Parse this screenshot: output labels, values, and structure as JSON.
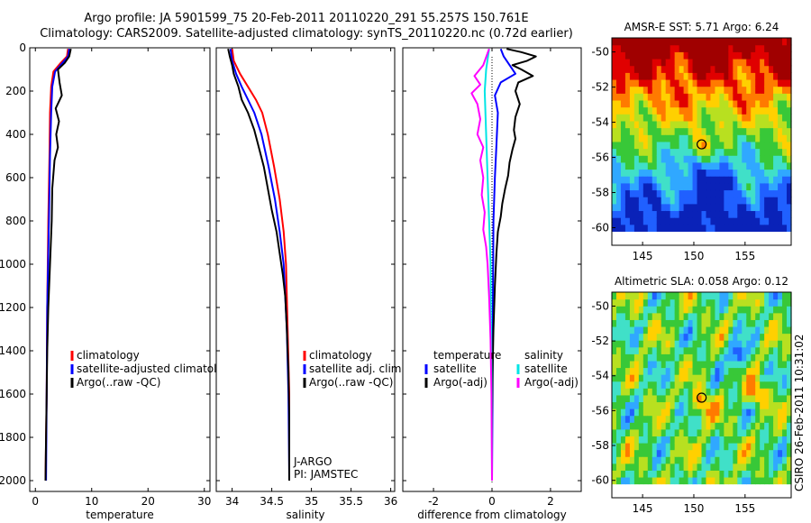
{
  "header": {
    "line1": "Argo profile: JA 5901599_75 20-Feb-2011 20110220_291 55.257S 150.761E",
    "line2": "Climatology: CARS2009. Satellite-adjusted climatology: synTS_20110220.nc (0.72d earlier)"
  },
  "watermark": "CSIRO 26-Feb-2011 10:31:02",
  "colors": {
    "climatology": "#ff0000",
    "satellite": "#0000ff",
    "argo": "#000000",
    "temp_diff": "#00e5e5",
    "sal_diff": "#ff00ff"
  },
  "chart_data": [
    {
      "type": "line",
      "id": "temperature",
      "xlabel": "temperature",
      "ylabel": "",
      "xlim": [
        -1,
        31
      ],
      "ylim": [
        2050,
        0
      ],
      "x_ticks": [
        0,
        10,
        20,
        30
      ],
      "x_tick_labels": [
        "0",
        "10",
        "20",
        "30"
      ],
      "y_ticks": [
        0,
        200,
        400,
        600,
        800,
        1000,
        1200,
        1400,
        1600,
        1800,
        2000
      ],
      "y_tick_labels": [
        "0",
        "200",
        "400",
        "600",
        "800",
        "1000",
        "1200",
        "1400",
        "1600",
        "1800",
        "2000"
      ],
      "legend": [
        "climatology",
        "satellite-adjusted climatology",
        "Argo(..raw -QC)"
      ],
      "legend_text_color": [
        "#000000",
        "#000000",
        "#000000"
      ],
      "series": [
        {
          "name": "climatology",
          "color": "#ff0000",
          "points": [
            [
              5.8,
              5
            ],
            [
              5.6,
              40
            ],
            [
              4.5,
              70
            ],
            [
              3.2,
              110
            ],
            [
              2.8,
              180
            ],
            [
              2.6,
              300
            ],
            [
              2.5,
              500
            ],
            [
              2.3,
              800
            ],
            [
              2.1,
              1200
            ],
            [
              2.0,
              1600
            ],
            [
              1.8,
              2000
            ]
          ]
        },
        {
          "name": "satellite-adjusted climatology",
          "color": "#0000ff",
          "points": [
            [
              6.0,
              5
            ],
            [
              5.8,
              40
            ],
            [
              4.8,
              70
            ],
            [
              3.5,
              110
            ],
            [
              3.0,
              180
            ],
            [
              2.8,
              300
            ],
            [
              2.6,
              500
            ],
            [
              2.4,
              800
            ],
            [
              2.1,
              1200
            ],
            [
              2.0,
              1600
            ],
            [
              1.9,
              2000
            ]
          ]
        },
        {
          "name": "Argo(..raw -QC)",
          "color": "#000000",
          "points": [
            [
              6.3,
              5
            ],
            [
              6.0,
              40
            ],
            [
              5.2,
              70
            ],
            [
              4.0,
              100
            ],
            [
              4.3,
              160
            ],
            [
              4.7,
              220
            ],
            [
              3.6,
              280
            ],
            [
              4.2,
              340
            ],
            [
              3.7,
              400
            ],
            [
              4.0,
              460
            ],
            [
              3.4,
              520
            ],
            [
              3.0,
              650
            ],
            [
              2.9,
              800
            ],
            [
              2.6,
              1000
            ],
            [
              2.3,
              1200
            ],
            [
              2.1,
              1400
            ],
            [
              2.0,
              1600
            ],
            [
              1.9,
              1800
            ],
            [
              1.8,
              2000
            ]
          ]
        }
      ]
    },
    {
      "type": "line",
      "id": "salinity",
      "xlabel": "salinity",
      "ylabel": "",
      "xlim": [
        33.8,
        36.05
      ],
      "ylim": [
        2050,
        0
      ],
      "x_ticks": [
        34,
        34.5,
        35,
        35.5,
        36
      ],
      "x_tick_labels": [
        "34",
        "34.5",
        "35",
        "35.5",
        "36"
      ],
      "legend": [
        "climatology",
        "satellite adj. clim.",
        "Argo(..raw -QC)"
      ],
      "annotations": [
        "J-ARGO",
        "PI: JAMSTEC"
      ],
      "series": [
        {
          "name": "climatology",
          "color": "#ff0000",
          "points": [
            [
              34.0,
              5
            ],
            [
              34.02,
              60
            ],
            [
              34.1,
              120
            ],
            [
              34.2,
              180
            ],
            [
              34.3,
              240
            ],
            [
              34.38,
              300
            ],
            [
              34.45,
              400
            ],
            [
              34.53,
              550
            ],
            [
              34.6,
              700
            ],
            [
              34.65,
              850
            ],
            [
              34.68,
              1000
            ],
            [
              34.7,
              1300
            ],
            [
              34.72,
              1600
            ],
            [
              34.72,
              2000
            ]
          ]
        },
        {
          "name": "satellite adj. clim.",
          "color": "#0000ff",
          "points": [
            [
              33.98,
              5
            ],
            [
              34.0,
              60
            ],
            [
              34.05,
              120
            ],
            [
              34.12,
              180
            ],
            [
              34.2,
              240
            ],
            [
              34.28,
              300
            ],
            [
              34.37,
              400
            ],
            [
              34.46,
              550
            ],
            [
              34.54,
              700
            ],
            [
              34.6,
              850
            ],
            [
              34.65,
              1000
            ],
            [
              34.69,
              1300
            ],
            [
              34.71,
              1600
            ],
            [
              34.72,
              2000
            ]
          ]
        },
        {
          "name": "Argo(..raw -QC)",
          "color": "#000000",
          "points": [
            [
              33.95,
              5
            ],
            [
              33.97,
              40
            ],
            [
              34.0,
              80
            ],
            [
              34.02,
              120
            ],
            [
              34.08,
              180
            ],
            [
              34.12,
              240
            ],
            [
              34.2,
              300
            ],
            [
              34.28,
              380
            ],
            [
              34.33,
              450
            ],
            [
              34.4,
              550
            ],
            [
              34.45,
              650
            ],
            [
              34.5,
              750
            ],
            [
              34.56,
              850
            ],
            [
              34.6,
              950
            ],
            [
              34.64,
              1050
            ],
            [
              34.67,
              1150
            ],
            [
              34.69,
              1300
            ],
            [
              34.71,
              1500
            ],
            [
              34.72,
              1700
            ],
            [
              34.72,
              2000
            ]
          ]
        }
      ]
    },
    {
      "type": "line",
      "id": "difference",
      "xlabel": "difference from climatology",
      "ylabel": "",
      "xlim": [
        -3.05,
        3.05
      ],
      "ylim": [
        2050,
        0
      ],
      "x_ticks": [
        -2,
        0,
        2
      ],
      "x_tick_labels": [
        "-2",
        "0",
        "2"
      ],
      "legend_left_title": "temperature",
      "legend_left": [
        "satellite",
        "Argo(-adj)"
      ],
      "legend_right_title": "salinity",
      "legend_right": [
        "satellite",
        "Argo(-adj)"
      ],
      "series": [
        {
          "name": "temperature satellite",
          "color": "#0000ff",
          "points": [
            [
              0.3,
              5
            ],
            [
              0.4,
              40
            ],
            [
              0.6,
              80
            ],
            [
              0.8,
              120
            ],
            [
              0.3,
              160
            ],
            [
              0.1,
              220
            ],
            [
              0.2,
              300
            ],
            [
              0.15,
              450
            ],
            [
              0.1,
              600
            ],
            [
              0.05,
              800
            ],
            [
              0.03,
              1200
            ],
            [
              0.02,
              1600
            ],
            [
              0.0,
              2000
            ]
          ]
        },
        {
          "name": "temperature Argo(-adj)",
          "color": "#000000",
          "points": [
            [
              0.5,
              5
            ],
            [
              1.0,
              20
            ],
            [
              1.5,
              40
            ],
            [
              1.2,
              60
            ],
            [
              0.7,
              80
            ],
            [
              1.0,
              100
            ],
            [
              1.4,
              130
            ],
            [
              0.9,
              160
            ],
            [
              0.8,
              200
            ],
            [
              0.95,
              260
            ],
            [
              0.8,
              320
            ],
            [
              0.75,
              380
            ],
            [
              0.8,
              420
            ],
            [
              0.7,
              470
            ],
            [
              0.6,
              530
            ],
            [
              0.55,
              590
            ],
            [
              0.45,
              650
            ],
            [
              0.35,
              720
            ],
            [
              0.3,
              780
            ],
            [
              0.2,
              850
            ],
            [
              0.15,
              950
            ],
            [
              0.1,
              1100
            ],
            [
              0.05,
              1300
            ],
            [
              0.02,
              1500
            ],
            [
              0.0,
              1700
            ],
            [
              0.0,
              2000
            ]
          ]
        },
        {
          "name": "salinity satellite",
          "color": "#00e5e5",
          "points": [
            [
              -0.1,
              5
            ],
            [
              -0.2,
              100
            ],
            [
              -0.25,
              200
            ],
            [
              -0.2,
              400
            ],
            [
              -0.15,
              600
            ],
            [
              -0.1,
              800
            ],
            [
              -0.05,
              1000
            ],
            [
              -0.03,
              1300
            ],
            [
              -0.01,
              1600
            ],
            [
              0.0,
              2000
            ]
          ]
        },
        {
          "name": "salinity Argo(-adj)",
          "color": "#ff00ff",
          "points": [
            [
              -0.1,
              5
            ],
            [
              -0.3,
              80
            ],
            [
              -0.6,
              130
            ],
            [
              -0.4,
              170
            ],
            [
              -0.7,
              210
            ],
            [
              -0.5,
              260
            ],
            [
              -0.4,
              330
            ],
            [
              -0.5,
              400
            ],
            [
              -0.3,
              460
            ],
            [
              -0.4,
              520
            ],
            [
              -0.3,
              600
            ],
            [
              -0.35,
              680
            ],
            [
              -0.25,
              760
            ],
            [
              -0.3,
              840
            ],
            [
              -0.2,
              920
            ],
            [
              -0.15,
              1000
            ],
            [
              -0.1,
              1150
            ],
            [
              -0.05,
              1350
            ],
            [
              -0.02,
              1600
            ],
            [
              0.0,
              2000
            ]
          ]
        }
      ]
    },
    {
      "type": "heatmap",
      "id": "sst",
      "title": "AMSR-E SST: 5.71 Argo: 6.24",
      "xlim": [
        142,
        159.5
      ],
      "ylim": [
        -61,
        -49.2
      ],
      "x_ticks": [
        145,
        150,
        155
      ],
      "x_tick_labels": [
        "145",
        "150",
        "155"
      ],
      "y_ticks": [
        -50,
        -52,
        -54,
        -56,
        -58,
        -60
      ],
      "y_tick_labels": [
        "-50",
        "-52",
        "-54",
        "-56",
        "-58",
        "-60"
      ],
      "marker": {
        "lon": 150.761,
        "lat": -55.257
      },
      "data_extent": {
        "lon": [
          142,
          159.5
        ],
        "lat": [
          -60.2,
          -49.2
        ]
      },
      "palette": [
        "#0a22b8",
        "#2060ff",
        "#30a8ff",
        "#40e0c8",
        "#38c838",
        "#b8e020",
        "#ffd000",
        "#ff7a00",
        "#e00000",
        "#a00000"
      ]
    },
    {
      "type": "heatmap",
      "id": "sla",
      "title": "Altimetric SLA: 0.058 Argo: 0.12",
      "xlim": [
        142,
        159.5
      ],
      "ylim": [
        -61,
        -49.2
      ],
      "x_ticks": [
        145,
        150,
        155
      ],
      "x_tick_labels": [
        "145",
        "150",
        "155"
      ],
      "y_ticks": [
        -50,
        -52,
        -54,
        -56,
        -58,
        -60
      ],
      "y_tick_labels": [
        "-50",
        "-52",
        "-54",
        "-56",
        "-58",
        "-60"
      ],
      "marker": {
        "lon": 150.761,
        "lat": -55.257
      },
      "data_extent": {
        "lon": [
          142,
          159.5
        ],
        "lat": [
          -60.2,
          -49.2
        ]
      },
      "palette": [
        "#0a22b8",
        "#2060ff",
        "#30a8ff",
        "#40e0c8",
        "#38c838",
        "#b8e020",
        "#ffd000",
        "#ff7a00",
        "#e00000",
        "#a00000"
      ]
    }
  ]
}
